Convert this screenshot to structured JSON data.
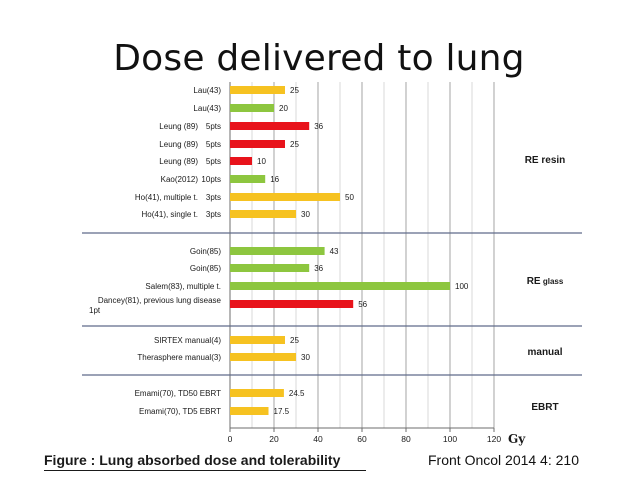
{
  "slide": {
    "title": "Dose delivered to lung",
    "caption": "Figure : Lung absorbed dose and tolerability",
    "source": "Front Oncol 2014 4: 210"
  },
  "colors": {
    "yellow": "#f6c221",
    "green": "#8dc63f",
    "red": "#e8131b",
    "grid": "#9a9a9a",
    "separator": "#5f6b8a",
    "text": "#1a1a1a"
  },
  "chart_data": {
    "type": "bar",
    "orientation": "horizontal",
    "xlabel": "Gy",
    "xlim": [
      0,
      120
    ],
    "xticks": [
      0,
      20,
      40,
      60,
      80,
      100,
      120
    ],
    "grid": true,
    "groups": [
      {
        "name": "RE resin",
        "bars": [
          {
            "label": "Lau(43)",
            "note": "",
            "value": 25,
            "value_label": "25",
            "color": "yellow"
          },
          {
            "label": "Lau(43)",
            "note": "",
            "value": 20,
            "value_label": "20",
            "color": "green"
          },
          {
            "label": "Leung (89)",
            "note": "5pts",
            "value": 36,
            "value_label": "36",
            "color": "red"
          },
          {
            "label": "Leung (89)",
            "note": "5pts",
            "value": 25,
            "value_label": "25",
            "color": "red"
          },
          {
            "label": "Leung (89)",
            "note": "5pts",
            "value": 10,
            "value_label": "10",
            "color": "red"
          },
          {
            "label": "Kao(2012)",
            "note": "10pts",
            "value": 16,
            "value_label": "16",
            "color": "green"
          },
          {
            "label": "Ho(41), multiple t.",
            "note": "3pts",
            "value": 50,
            "value_label": "50",
            "color": "yellow"
          },
          {
            "label": "Ho(41), single t.",
            "note": "3pts",
            "value": 30,
            "value_label": "30",
            "color": "yellow"
          }
        ]
      },
      {
        "name": "RE",
        "name_suffix": "glass",
        "bars": [
          {
            "label": "Goin(85)",
            "note": "",
            "value": 43,
            "value_label": "43",
            "color": "green"
          },
          {
            "label": "Goin(85)",
            "note": "",
            "value": 36,
            "value_label": "36",
            "color": "green"
          },
          {
            "label": "Salem(83), multiple t.",
            "note": "",
            "value": 100,
            "value_label": "100",
            "color": "green"
          },
          {
            "label": "Dancey(81), previous lung disease",
            "label_line2": "1pt",
            "note": "",
            "value": 56,
            "value_label": "56",
            "color": "red"
          }
        ]
      },
      {
        "name": "manual",
        "bars": [
          {
            "label": "SIRTEX manual(4)",
            "note": "",
            "value": 25,
            "value_label": "25",
            "color": "yellow"
          },
          {
            "label": "Therasphere manual(3)",
            "note": "",
            "value": 30,
            "value_label": "30",
            "color": "yellow"
          }
        ]
      },
      {
        "name": "EBRT",
        "bars": [
          {
            "label": "Emami(70), TD50 EBRT",
            "note": "",
            "value": 24.5,
            "value_label": "24.5",
            "color": "yellow"
          },
          {
            "label": "Emami(70), TD5 EBRT",
            "note": "",
            "value": 17.5,
            "value_label": "17.5",
            "color": "yellow"
          }
        ]
      }
    ]
  }
}
